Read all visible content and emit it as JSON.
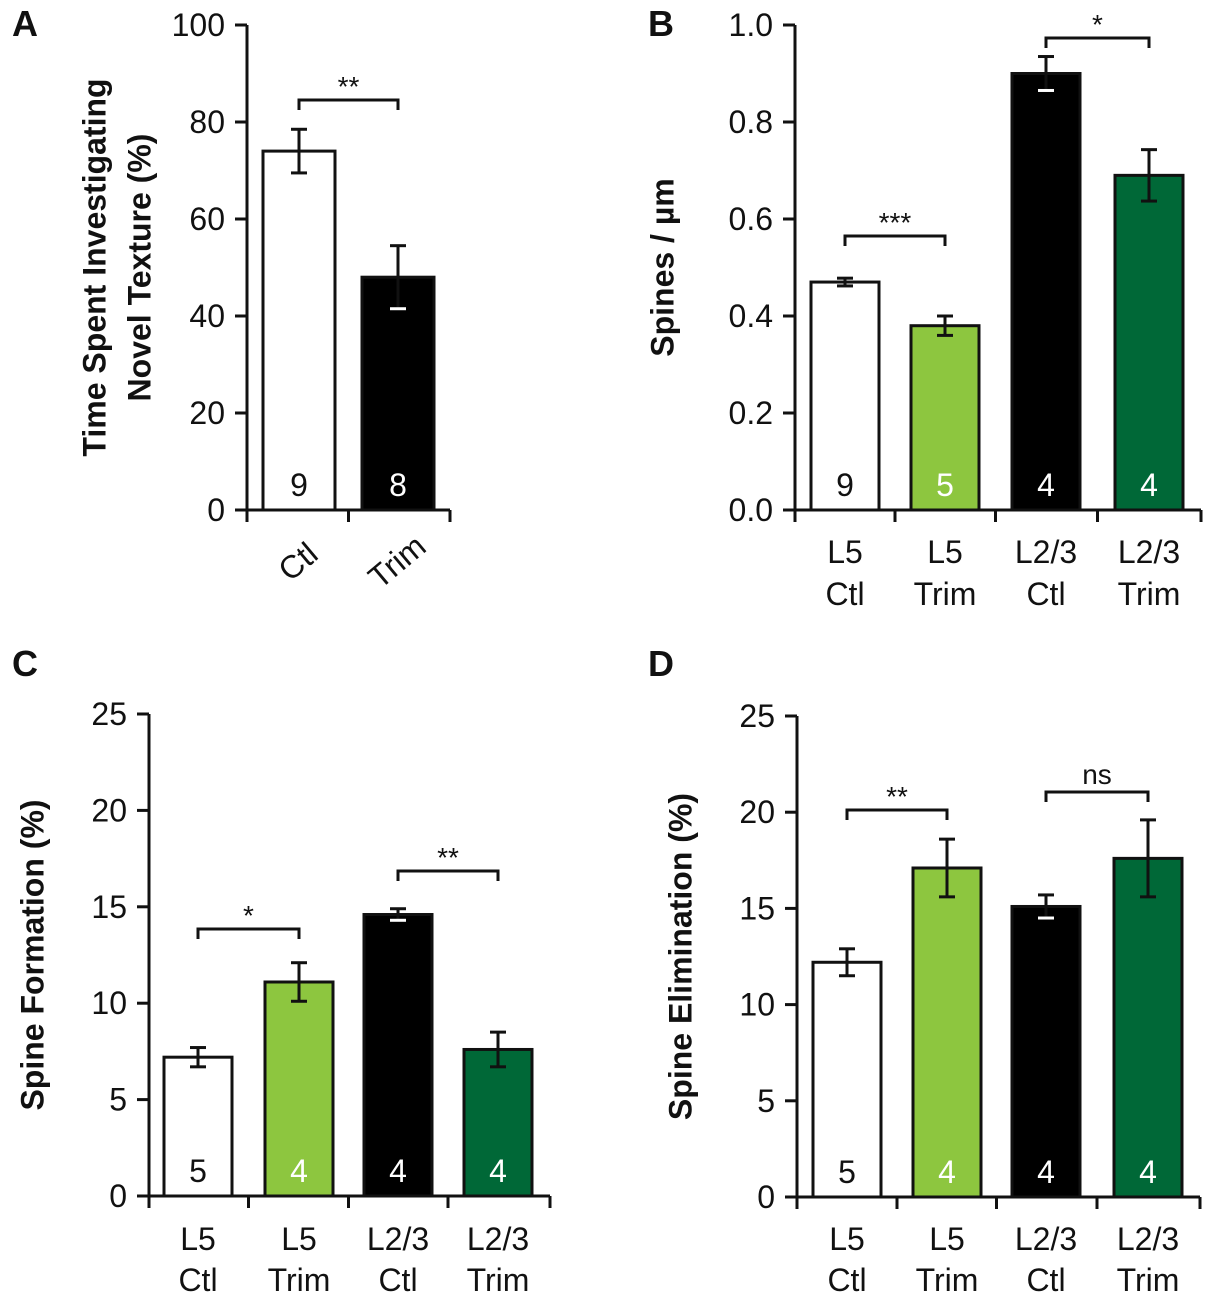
{
  "colors": {
    "ctl_white": "#ffffff",
    "trim_light_green": "#8dc63f",
    "ctl_black": "#000000",
    "trim_dark_green": "#006837",
    "axis": "#111111"
  },
  "chart_data": [
    {
      "panel": "A",
      "type": "bar",
      "ylabel": [
        "Time Spent Investigating",
        "Novel Texture (%)"
      ],
      "ylim": [
        0,
        100
      ],
      "yticks": [
        "0",
        "20",
        "40",
        "60",
        "80",
        "100"
      ],
      "categories": [
        [
          "Ctl"
        ],
        [
          "Trim"
        ]
      ],
      "rotated_x_labels": true,
      "values": [
        74,
        48
      ],
      "errors": [
        4.5,
        6.5
      ],
      "n": [
        "9",
        "8"
      ],
      "colors": [
        "#ffffff",
        "#000000"
      ],
      "n_colors": [
        "#111111",
        "#ffffff"
      ],
      "significance": [
        {
          "from": 0,
          "to": 1,
          "label": "**"
        }
      ]
    },
    {
      "panel": "B",
      "type": "bar",
      "ylabel": [
        "Spines / µm"
      ],
      "ylim": [
        0,
        1.0
      ],
      "yticks": [
        "0.0",
        "0.2",
        "0.4",
        "0.6",
        "0.8",
        "1.0"
      ],
      "categories": [
        [
          "L5",
          "Ctl"
        ],
        [
          "L5",
          "Trim"
        ],
        [
          "L2/3",
          "Ctl"
        ],
        [
          "L2/3",
          "Trim"
        ]
      ],
      "rotated_x_labels": false,
      "values": [
        0.47,
        0.38,
        0.9,
        0.69
      ],
      "errors": [
        0.008,
        0.02,
        0.035,
        0.053
      ],
      "n": [
        "9",
        "5",
        "4",
        "4"
      ],
      "colors": [
        "#ffffff",
        "#8dc63f",
        "#000000",
        "#006837"
      ],
      "n_colors": [
        "#111111",
        "#ffffff",
        "#ffffff",
        "#ffffff"
      ],
      "significance": [
        {
          "from": 0,
          "to": 1,
          "label": "***"
        },
        {
          "from": 2,
          "to": 3,
          "label": "*"
        }
      ]
    },
    {
      "panel": "C",
      "type": "bar",
      "ylabel": [
        "Spine Formation (%)"
      ],
      "ylim": [
        0,
        25
      ],
      "yticks": [
        "0",
        "5",
        "10",
        "15",
        "20",
        "25"
      ],
      "categories": [
        [
          "L5",
          "Ctl"
        ],
        [
          "L5",
          "Trim"
        ],
        [
          "L2/3",
          "Ctl"
        ],
        [
          "L2/3",
          "Trim"
        ]
      ],
      "rotated_x_labels": false,
      "values": [
        7.2,
        11.1,
        14.6,
        7.6
      ],
      "errors": [
        0.5,
        1.0,
        0.3,
        0.9
      ],
      "n": [
        "5",
        "4",
        "4",
        "4"
      ],
      "colors": [
        "#ffffff",
        "#8dc63f",
        "#000000",
        "#006837"
      ],
      "n_colors": [
        "#111111",
        "#ffffff",
        "#ffffff",
        "#ffffff"
      ],
      "significance": [
        {
          "from": 0,
          "to": 1,
          "label": "*"
        },
        {
          "from": 2,
          "to": 3,
          "label": "**"
        }
      ]
    },
    {
      "panel": "D",
      "type": "bar",
      "ylabel": [
        "Spine Elimination (%)"
      ],
      "ylim": [
        0,
        25
      ],
      "yticks": [
        "0",
        "5",
        "10",
        "15",
        "20",
        "25"
      ],
      "categories": [
        [
          "L5",
          "Ctl"
        ],
        [
          "L5",
          "Trim"
        ],
        [
          "L2/3",
          "Ctl"
        ],
        [
          "L2/3",
          "Trim"
        ]
      ],
      "rotated_x_labels": false,
      "values": [
        12.2,
        17.1,
        15.1,
        17.6
      ],
      "errors": [
        0.7,
        1.5,
        0.6,
        2.0
      ],
      "n": [
        "5",
        "4",
        "4",
        "4"
      ],
      "colors": [
        "#ffffff",
        "#8dc63f",
        "#000000",
        "#006837"
      ],
      "n_colors": [
        "#111111",
        "#ffffff",
        "#ffffff",
        "#ffffff"
      ],
      "significance": [
        {
          "from": 0,
          "to": 1,
          "label": "**"
        },
        {
          "from": 2,
          "to": 3,
          "label": "ns"
        }
      ]
    }
  ]
}
